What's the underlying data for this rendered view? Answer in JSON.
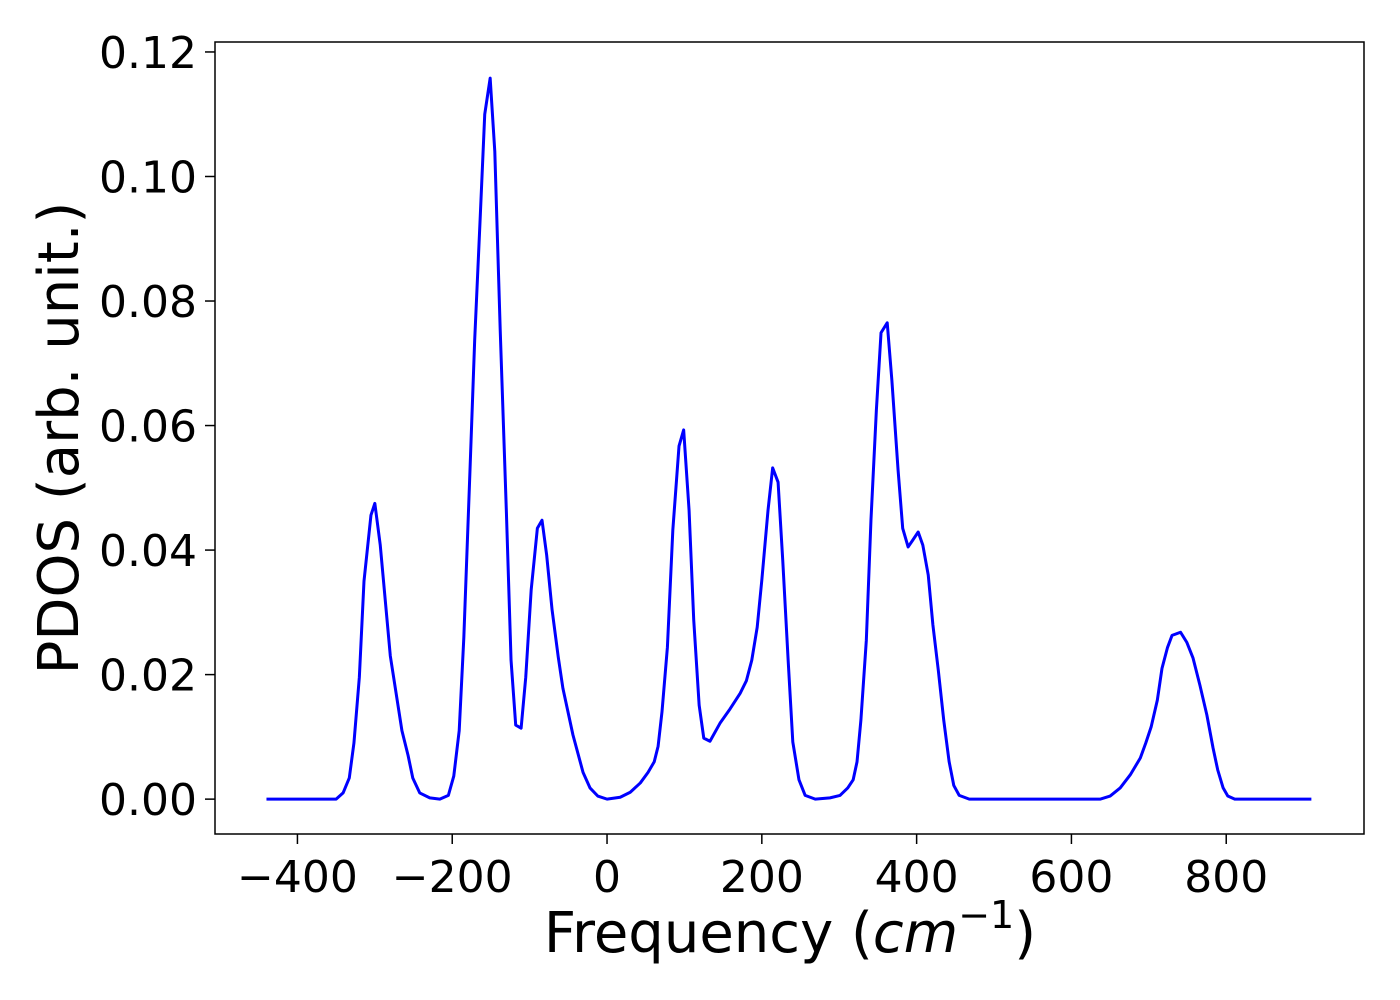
{
  "chart_data": {
    "type": "line",
    "x_label": {
      "text": "Frequency (",
      "unit": "cm",
      "exponent": "−1",
      "close": ")"
    },
    "y_label": "PDOS (arb. unit.)",
    "xlim": [
      -506.5,
      978
    ],
    "ylim": [
      -0.0056,
      0.1216
    ],
    "xticks": [
      {
        "value": -400,
        "label": "−400"
      },
      {
        "value": -200,
        "label": "−200"
      },
      0,
      200,
      400,
      600,
      800
    ],
    "yticks": [
      {
        "value": 0,
        "label": "0.00"
      },
      {
        "value": 0.02,
        "label": "0.02"
      },
      {
        "value": 0.04,
        "label": "0.04"
      },
      {
        "value": 0.06,
        "label": "0.06"
      },
      {
        "value": 0.08,
        "label": "0.08"
      },
      {
        "value": 0.1,
        "label": "0.10"
      },
      {
        "value": 0.12,
        "label": "0.12"
      }
    ],
    "grid": false,
    "x": [
      -440,
      -350,
      -341,
      -333,
      -327,
      -320,
      -314,
      -305,
      -300,
      -293,
      -280,
      -265,
      -257,
      -251,
      -242,
      -229,
      -216,
      -205,
      -198,
      -191,
      -185,
      -177,
      -171,
      -164,
      -158,
      -151,
      -145,
      -138,
      -130,
      -124,
      -118,
      -111,
      -105,
      -98,
      -90,
      -84,
      -78,
      -71,
      -63,
      -57,
      -44,
      -31,
      -22,
      -12,
      0,
      17,
      30,
      43,
      53,
      61,
      66,
      71,
      78,
      85,
      93,
      99,
      106,
      112,
      119,
      125,
      133,
      146,
      159,
      172,
      180,
      187,
      194,
      200,
      208,
      214,
      221,
      227,
      234,
      240,
      248,
      256,
      269,
      288,
      301,
      311,
      318,
      323,
      328,
      335,
      341,
      348,
      354,
      362,
      368,
      376,
      382,
      389,
      395,
      402,
      408,
      415,
      421,
      428,
      435,
      442,
      448,
      455,
      468,
      637,
      650,
      663,
      676,
      689,
      696,
      703,
      711,
      717,
      724,
      730,
      741,
      749,
      757,
      766,
      775,
      783,
      789,
      796,
      802,
      811,
      910
    ],
    "series": [
      {
        "name": "PDOS",
        "color": "#0000ff",
        "values": [
          0,
          0,
          0.001,
          0.0034,
          0.009,
          0.0196,
          0.035,
          0.0456,
          0.0475,
          0.0408,
          0.023,
          0.011,
          0.007,
          0.0034,
          0.001,
          0.0002,
          0,
          0.0006,
          0.0037,
          0.011,
          0.026,
          0.053,
          0.0737,
          0.093,
          0.11,
          0.1158,
          0.104,
          0.0753,
          0.046,
          0.0223,
          0.0119,
          0.0114,
          0.0196,
          0.0336,
          0.0435,
          0.0448,
          0.0392,
          0.0304,
          0.0228,
          0.0178,
          0.0103,
          0.0043,
          0.0018,
          0.0005,
          0,
          0.0003,
          0.0011,
          0.0026,
          0.0043,
          0.006,
          0.0085,
          0.014,
          0.0244,
          0.0432,
          0.0567,
          0.0593,
          0.0464,
          0.0288,
          0.0151,
          0.0098,
          0.0093,
          0.0122,
          0.0145,
          0.017,
          0.019,
          0.0223,
          0.0276,
          0.0352,
          0.0464,
          0.0532,
          0.0509,
          0.0384,
          0.0223,
          0.0092,
          0.0031,
          0.0006,
          0,
          0.0002,
          0.0006,
          0.0018,
          0.0031,
          0.006,
          0.0127,
          0.0255,
          0.0448,
          0.0625,
          0.0749,
          0.0765,
          0.0673,
          0.0529,
          0.0435,
          0.0405,
          0.0416,
          0.0429,
          0.0408,
          0.036,
          0.028,
          0.0207,
          0.0127,
          0.006,
          0.0022,
          0.0006,
          0,
          0,
          0.0005,
          0.0018,
          0.0039,
          0.0066,
          0.009,
          0.0116,
          0.0159,
          0.021,
          0.0243,
          0.0263,
          0.0268,
          0.0252,
          0.0227,
          0.0183,
          0.0135,
          0.0082,
          0.0047,
          0.0018,
          0.0005,
          0,
          0
        ]
      }
    ]
  }
}
